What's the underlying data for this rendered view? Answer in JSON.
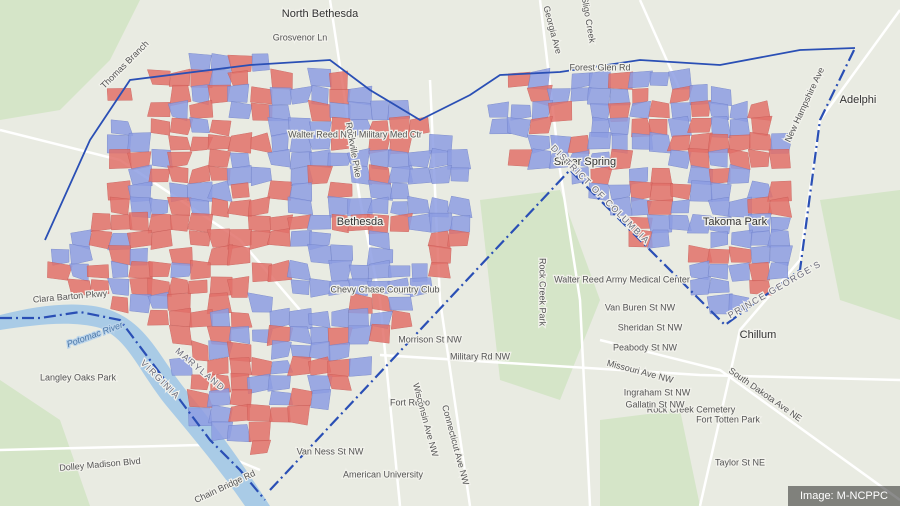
{
  "map": {
    "labels": [
      "North Bethesda",
      "Bethesda",
      "Silver Spring",
      "Takoma Park",
      "Adelphi",
      "Chillum",
      "Chevy Chase Country Club",
      "Potomac River",
      "MARYLAND",
      "DISTRICT OF COLUMBIA",
      "PRINCE GEORGE'S",
      "VIRGINIA",
      "Walter Reed Natl Military Med Ctr",
      "Walter Reed Army Medical Center",
      "Rock Creek Park",
      "American University",
      "Fort Reno",
      "Rockville Pike",
      "Wisconsin Ave NW",
      "Connecticut Ave NW",
      "Georgia Ave",
      "Military Rd NW",
      "Missouri Ave NW",
      "Morrison St NW",
      "Van Buren St NW",
      "Sheridan St NW",
      "Peabody St NW",
      "Dolley Madison Blvd",
      "Chain Bridge Rd",
      "Clara Barton Pkwy",
      "New Hampshire Ave",
      "South Dakota Ave NE",
      "Van Ness St NW",
      "Grosvenor Ln",
      "Forest Glen Rd",
      "Sligo Creek",
      "Thomas Branch",
      "Langley Oaks Park",
      "Rock Creek Cemetery",
      "Fort Totten Park",
      "Taylor St NE",
      "Ingraham St NW",
      "Gallatin St NW"
    ],
    "credit": "Image: M-NCPPC"
  }
}
